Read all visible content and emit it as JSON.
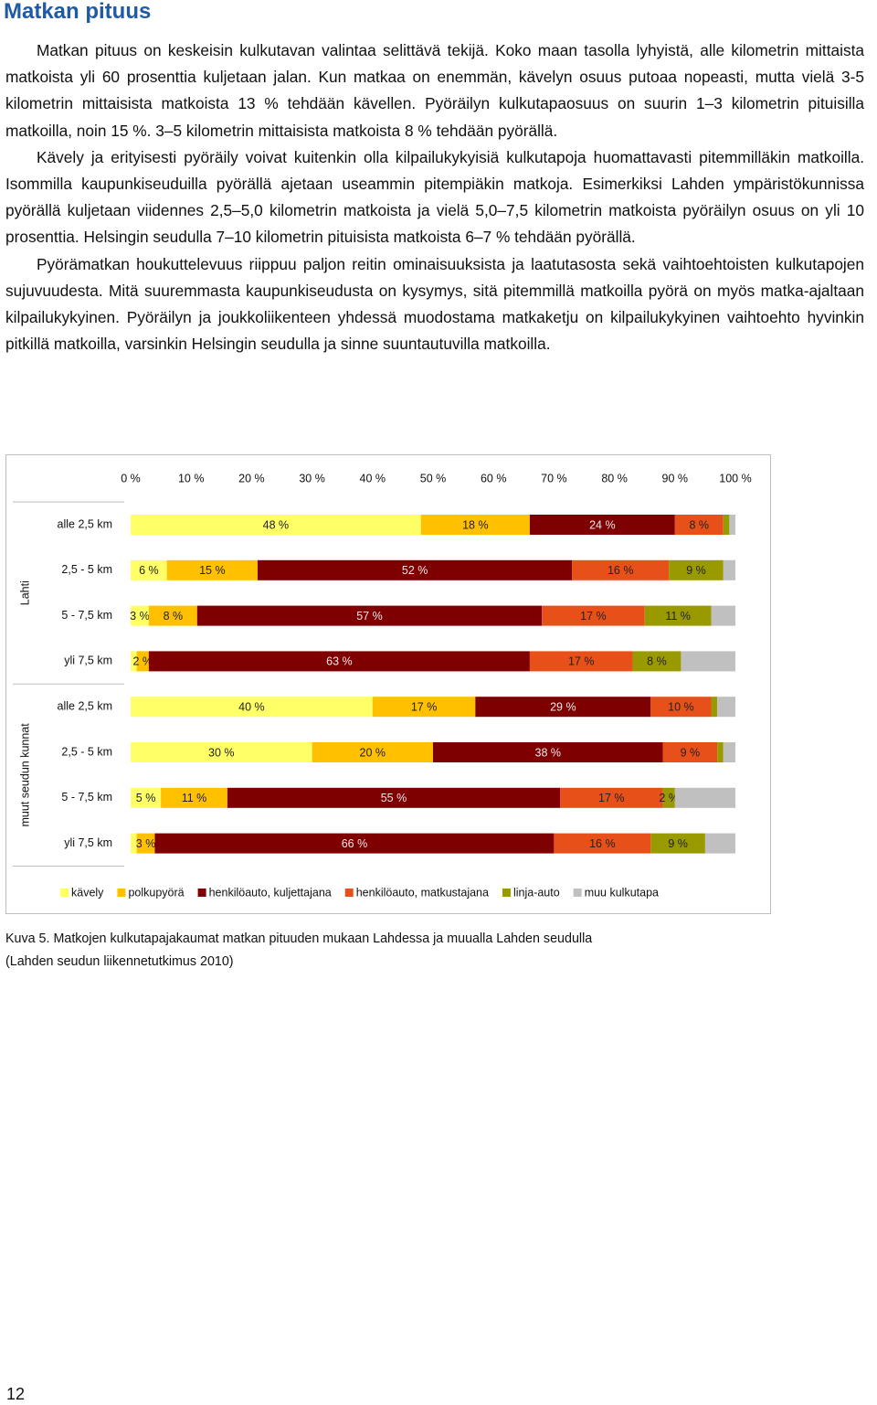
{
  "heading": "Matkan pituus",
  "paragraphs": [
    "Matkan pituus on keskeisin kulkutavan valintaa selittävä tekijä. Koko maan tasolla lyhyistä, alle kilometrin mittaista matkoista yli 60 prosenttia kuljetaan jalan. Kun matkaa on enemmän, kävelyn osuus putoaa nopeasti, mutta vielä 3-5 kilometrin mittaisista matkoista 13 % tehdään kävellen. Pyöräilyn kulkutapaosuus on suurin 1–3 kilometrin pituisilla matkoilla, noin 15 %. 3–5 kilometrin mittaisista matkoista 8 % tehdään pyörällä.",
    "Kävely ja erityisesti pyöräily voivat kuitenkin olla kilpailukykyisiä kulkutapoja huomattavasti pitemmilläkin matkoilla. Isommilla kaupunkiseuduilla pyörällä ajetaan useammin pitempiäkin matkoja. Esimerkiksi Lahden ympäristökunnissa pyörällä kuljetaan viidennes 2,5–5,0 kilometrin matkoista ja vielä 5,0–7,5 kilometrin matkoista pyöräilyn osuus on yli 10 prosenttia. Helsingin seudulla 7–10 kilometrin pituisista matkoista 6–7 % tehdään pyörällä.",
    "Pyörämatkan houkuttelevuus riippuu paljon reitin ominaisuuksista ja laatutasosta sekä vaihtoehtoisten kulkutapojen sujuvuudesta. Mitä suuremmasta kaupunkiseudusta on kysymys, sitä pitemmillä matkoilla pyörä on myös matka-ajaltaan kilpailukykyinen. Pyöräilyn ja joukkoliikenteen yhdessä muodostama matkaketju on kilpailukykyinen vaihtoehto hyvinkin pitkillä matkoilla, varsinkin Helsingin seudulla ja sinne suuntautuvilla matkoilla."
  ],
  "chart_data": {
    "type": "stacked_barh",
    "groups": [
      "Lahti",
      "muut seudun kunnat"
    ],
    "categories": [
      "alle 2,5 km",
      "2,5 - 5 km",
      "5 - 7,5 km",
      "yli 7,5 km",
      "alle 2,5 km",
      "2,5 - 5 km",
      "5 - 7,5 km",
      "yli 7,5 km"
    ],
    "series": [
      {
        "name": "kävely",
        "color": "#ffff66",
        "values": [
          48,
          6,
          3,
          1,
          40,
          30,
          5,
          1
        ],
        "value_labels": [
          "48 %",
          "6 %",
          "3 %",
          null,
          "40 %",
          "30 %",
          "5 %",
          null
        ]
      },
      {
        "name": "polkupyörä",
        "color": "#ffc000",
        "values": [
          18,
          15,
          8,
          2,
          17,
          20,
          11,
          3
        ],
        "value_labels": [
          "18 %",
          "15 %",
          "8 %",
          "2 %",
          "17 %",
          "20 %",
          "11 %",
          "3 %"
        ]
      },
      {
        "name": "henkilöauto, kuljettajana",
        "color": "#7f0000",
        "values": [
          24,
          52,
          57,
          63,
          29,
          38,
          55,
          66
        ],
        "value_labels": [
          "24 %",
          "52 %",
          "57 %",
          "63 %",
          "29 %",
          "38 %",
          "55 %",
          "66 %"
        ]
      },
      {
        "name": "henkilöauto, matkustajana",
        "color": "#e8501a",
        "values": [
          8,
          16,
          17,
          17,
          10,
          9,
          17,
          16
        ],
        "value_labels": [
          "8 %",
          "16 %",
          "17 %",
          "17 %",
          "10 %",
          "9 %",
          "17 %",
          "16 %"
        ]
      },
      {
        "name": "linja-auto",
        "color": "#999900",
        "values": [
          1,
          9,
          11,
          8,
          1,
          1,
          2,
          9
        ],
        "value_labels": [
          null,
          "9 %",
          "11 %",
          "8 %",
          null,
          null,
          "2 %",
          "9 %"
        ]
      },
      {
        "name": "muu kulkutapa",
        "color": "#c0c0c0",
        "values": [
          1,
          2,
          4,
          9,
          3,
          2,
          10,
          5
        ],
        "value_labels": [
          null,
          null,
          null,
          null,
          null,
          null,
          null,
          null
        ]
      }
    ],
    "xlim": [
      0,
      100
    ],
    "xticks": [
      {
        "value": 0,
        "label": "0 %"
      },
      {
        "value": 10,
        "label": "10 %"
      },
      {
        "value": 20,
        "label": "20 %"
      },
      {
        "value": 30,
        "label": "30 %"
      },
      {
        "value": 40,
        "label": "40 %"
      },
      {
        "value": 50,
        "label": "50 %"
      },
      {
        "value": 60,
        "label": "60 %"
      },
      {
        "value": 70,
        "label": "70 %"
      },
      {
        "value": 80,
        "label": "80 %"
      },
      {
        "value": 90,
        "label": "90 %"
      },
      {
        "value": 100,
        "label": "100 %"
      }
    ],
    "legend": "bottom"
  },
  "caption": [
    "Kuva 5. Matkojen kulkutapajakaumat matkan pituuden mukaan Lahdessa ja muualla Lahden seudulla",
    "(Lahden seudun liikennetutkimus 2010)"
  ],
  "page_number": "12"
}
